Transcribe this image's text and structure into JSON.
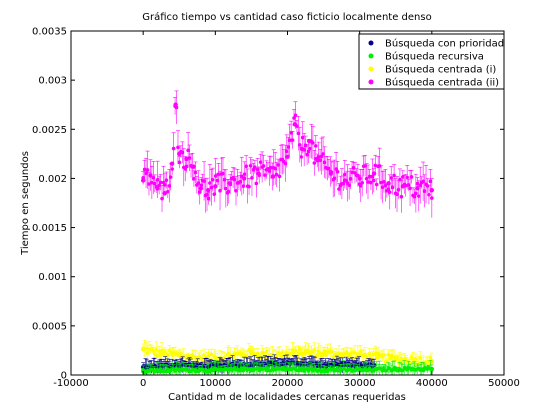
{
  "chart_data": {
    "type": "scatter",
    "title": "Gráfico tiempo vs cantidad caso ficticio localmente denso",
    "xlabel": "Cantidad m de localidades cercanas requeridas",
    "ylabel": "Tiempo en segundos",
    "xlim": [
      -10000,
      50000
    ],
    "ylim": [
      0,
      0.0035
    ],
    "x_ticks": [
      "-10000",
      "0",
      "10000",
      "20000",
      "30000",
      "40000",
      "50000"
    ],
    "y_ticks": [
      "0",
      "0.0005",
      "0.001",
      "0.0015",
      "0.002",
      "0.0025",
      "0.003",
      "0.0035"
    ],
    "x_tick_values": [
      -10000,
      0,
      10000,
      20000,
      30000,
      40000,
      50000
    ],
    "y_tick_values": [
      0,
      0.0005,
      0.001,
      0.0015,
      0.002,
      0.0025,
      0.003,
      0.0035
    ],
    "grid": false,
    "legend_position": "top-right",
    "error_bars": true,
    "series": [
      {
        "name": "Búsqueda con prioridad",
        "color": "#00008b",
        "x": [
          0,
          2500,
          5000,
          7500,
          10000,
          12500,
          15000,
          17500,
          20000,
          22500,
          25000,
          27500,
          30000,
          32000
        ],
        "y": [
          8e-05,
          9e-05,
          0.0001,
          9e-05,
          9e-05,
          0.0001,
          0.0001,
          0.00011,
          0.00012,
          0.00011,
          0.0001,
          0.00011,
          0.0001,
          0.0001
        ]
      },
      {
        "name": "Búsqueda recursiva",
        "color": "#00ee00",
        "x": [
          0,
          5000,
          10000,
          15000,
          20000,
          25000,
          30000,
          35000,
          40000
        ],
        "y": [
          4e-05,
          5e-05,
          5e-05,
          6e-05,
          6e-05,
          5e-05,
          5e-05,
          6e-05,
          6e-05
        ]
      },
      {
        "name": "Búsqueda centrada (i)",
        "color": "#ffff00",
        "x": [
          0,
          2500,
          5000,
          7500,
          10000,
          12500,
          15000,
          17500,
          20000,
          22500,
          25000,
          27500,
          30000,
          32500,
          35000,
          37500,
          40000
        ],
        "y": [
          0.00026,
          0.00022,
          0.0002,
          0.00017,
          0.00017,
          0.0002,
          0.00022,
          0.0002,
          0.00021,
          0.00023,
          0.00022,
          0.00021,
          0.0002,
          0.00018,
          0.00016,
          0.00015,
          0.00014
        ]
      },
      {
        "name": "Búsqueda centrada (ii)",
        "color": "#ff00ff",
        "x": [
          0,
          1000,
          2000,
          3000,
          4000,
          4500,
          5000,
          6000,
          7000,
          8000,
          9000,
          10000,
          12000,
          14000,
          16000,
          18000,
          20000,
          21000,
          22000,
          23000,
          24000,
          26000,
          28000,
          30000,
          32000,
          34000,
          36000,
          38000,
          40000
        ],
        "y": [
          0.00198,
          0.00203,
          0.0019,
          0.00185,
          0.00215,
          0.00275,
          0.00225,
          0.0022,
          0.00212,
          0.0019,
          0.00188,
          0.00192,
          0.00195,
          0.002,
          0.00205,
          0.00202,
          0.00222,
          0.00255,
          0.0023,
          0.00238,
          0.0022,
          0.00205,
          0.00198,
          0.002,
          0.00205,
          0.00195,
          0.00192,
          0.0019,
          0.00188
        ]
      }
    ]
  }
}
